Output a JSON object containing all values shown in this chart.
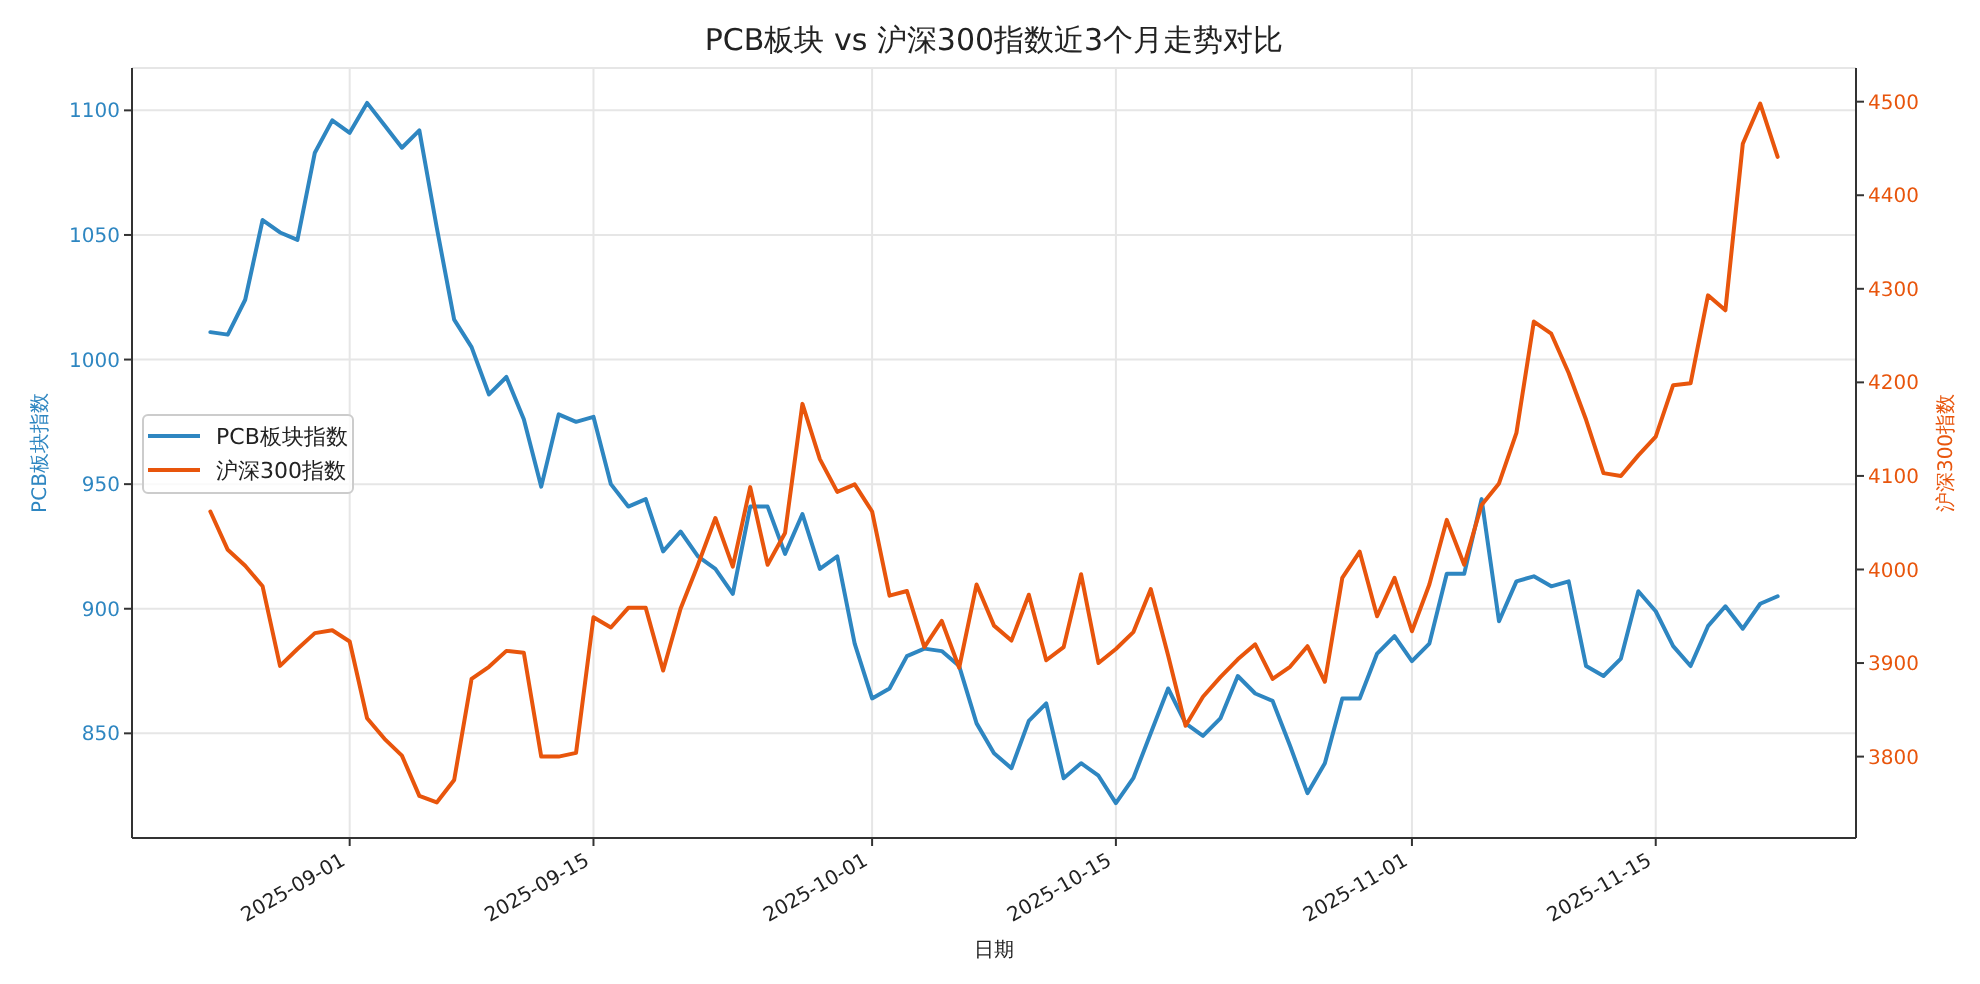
{
  "chart_data": {
    "type": "line",
    "title": "PCB板块 vs 沪深300指数近3个月走势对比",
    "xlabel": "日期",
    "ylabel": "PCB板块指数",
    "y2label": "沪深300指数",
    "x": [
      "2025-08-24",
      "2025-08-25",
      "2025-08-26",
      "2025-08-27",
      "2025-08-28",
      "2025-08-29",
      "2025-08-30",
      "2025-08-31",
      "2025-09-01",
      "2025-09-02",
      "2025-09-03",
      "2025-09-04",
      "2025-09-05",
      "2025-09-06",
      "2025-09-07",
      "2025-09-08",
      "2025-09-09",
      "2025-09-10",
      "2025-09-11",
      "2025-09-12",
      "2025-09-13",
      "2025-09-14",
      "2025-09-15",
      "2025-09-16",
      "2025-09-17",
      "2025-09-18",
      "2025-09-19",
      "2025-09-20",
      "2025-09-21",
      "2025-09-22",
      "2025-09-23",
      "2025-09-24",
      "2025-09-25",
      "2025-09-26",
      "2025-09-27",
      "2025-09-28",
      "2025-09-29",
      "2025-09-30",
      "2025-10-01",
      "2025-10-02",
      "2025-10-03",
      "2025-10-04",
      "2025-10-05",
      "2025-10-06",
      "2025-10-07",
      "2025-10-08",
      "2025-10-09",
      "2025-10-10",
      "2025-10-11",
      "2025-10-12",
      "2025-10-13",
      "2025-10-14",
      "2025-10-15",
      "2025-10-16",
      "2025-10-17",
      "2025-10-18",
      "2025-10-19",
      "2025-10-20",
      "2025-10-21",
      "2025-10-22",
      "2025-10-23",
      "2025-10-24",
      "2025-10-25",
      "2025-10-26",
      "2025-10-27",
      "2025-10-28",
      "2025-10-29",
      "2025-10-30",
      "2025-10-31",
      "2025-11-01",
      "2025-11-02",
      "2025-11-03",
      "2025-11-04",
      "2025-11-05",
      "2025-11-06",
      "2025-11-07",
      "2025-11-08",
      "2025-11-09",
      "2025-11-10",
      "2025-11-11",
      "2025-11-12",
      "2025-11-13",
      "2025-11-14",
      "2025-11-15",
      "2025-11-16",
      "2025-11-17",
      "2025-11-18",
      "2025-11-19",
      "2025-11-20",
      "2025-11-21",
      "2025-11-22"
    ],
    "series": [
      {
        "name": "PCB板块指数",
        "color": "#2e86c1",
        "values": [
          1011,
          1010,
          1024,
          1056,
          1051,
          1048,
          1083,
          1096,
          1091,
          1103,
          1094,
          1085,
          1092,
          1053,
          1016,
          1005,
          986,
          993,
          976,
          949,
          978,
          975,
          977,
          950,
          941,
          944,
          923,
          931,
          921,
          916,
          906,
          941,
          941,
          922,
          938,
          916,
          921,
          886,
          864,
          868,
          881,
          884,
          883,
          877,
          854,
          842,
          836,
          855,
          862,
          832,
          838,
          833,
          822,
          832,
          850,
          868,
          854,
          849,
          856,
          873,
          866,
          863,
          845,
          826,
          838,
          864,
          864,
          882,
          889,
          879,
          886,
          914,
          914,
          944,
          895,
          911,
          913,
          909,
          911,
          877,
          873,
          880,
          907,
          899,
          885,
          877,
          893,
          901,
          892,
          902,
          905
        ]
      },
      {
        "name": "沪深300指数",
        "color": "#e8550c",
        "axis": "y2",
        "values": [
          4062,
          4021,
          4004,
          3982,
          3897,
          3915,
          3932,
          3935,
          3923,
          3841,
          3819,
          3801,
          3758,
          3751,
          3775,
          3883,
          3896,
          3913,
          3911,
          3800,
          3800,
          3804,
          3949,
          3938,
          3959,
          3959,
          3892,
          3958,
          4005,
          4055,
          4003,
          4088,
          4005,
          4039,
          4177,
          4118,
          4083,
          4091,
          4062,
          3972,
          3977,
          3917,
          3945,
          3895,
          3984,
          3940,
          3924,
          3973,
          3903,
          3917,
          3995,
          3900,
          3915,
          3933,
          3979,
          3908,
          3833,
          3864,
          3885,
          3904,
          3920,
          3883,
          3896,
          3918,
          3880,
          3991,
          4019,
          3950,
          3991,
          3934,
          3984,
          4053,
          4005,
          4069,
          4092,
          4146,
          4265,
          4252,
          4210,
          4160,
          4103,
          4100,
          4122,
          4142,
          4197,
          4199,
          4293,
          4277,
          4455,
          4498,
          4441
        ]
      }
    ],
    "xlim": [
      "2025-08-19T12:00",
      "2025-11-26T12:00"
    ],
    "xticks": [
      "2025-09-01",
      "2025-09-15",
      "2025-10-01",
      "2025-10-15",
      "2025-11-01",
      "2025-11-15"
    ],
    "ylim": [
      808,
      1117
    ],
    "yticks": [
      850,
      900,
      950,
      1000,
      1050,
      1100
    ],
    "y2lim": [
      3713,
      4536
    ],
    "y2ticks": [
      3800,
      3900,
      4000,
      4100,
      4200,
      4300,
      4400,
      4500
    ],
    "grid": true,
    "legend": "left"
  }
}
